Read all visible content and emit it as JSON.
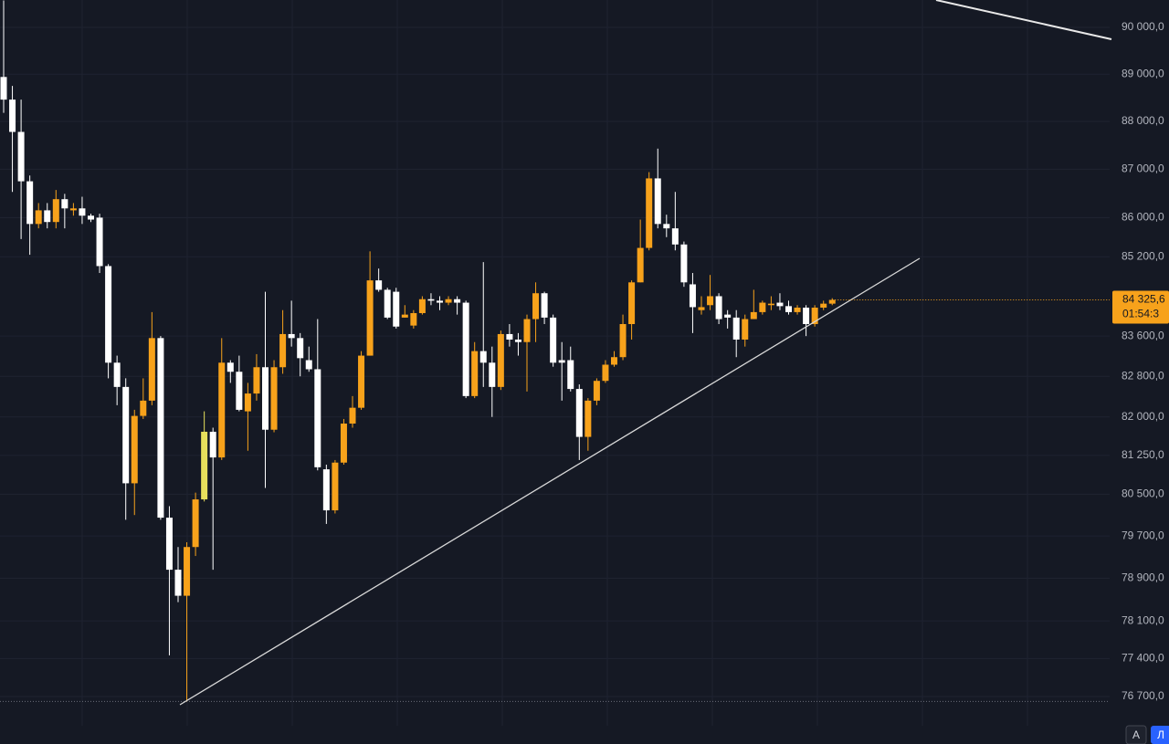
{
  "chart_data": {
    "type": "candlestick",
    "log": true,
    "grid": true,
    "up_color": "#f7a21b",
    "down_color": "#ffffff",
    "selected_index": 23,
    "selected_color": "#e8e05c",
    "ylim": [
      75835,
      90591
    ],
    "yticks": [
      {
        "value": 90000,
        "label": "90 000,0"
      },
      {
        "value": 89000,
        "label": "89 000,0"
      },
      {
        "value": 88000,
        "label": "88 000,0"
      },
      {
        "value": 87000,
        "label": "87 000,0"
      },
      {
        "value": 86000,
        "label": "86 000,0"
      },
      {
        "value": 85200,
        "label": "85 200,0"
      },
      {
        "value": 83600,
        "label": "83 600,0"
      },
      {
        "value": 82800,
        "label": "82 800,0"
      },
      {
        "value": 82000,
        "label": "82 000,0"
      },
      {
        "value": 81250,
        "label": "81 250,0"
      },
      {
        "value": 80500,
        "label": "80 500,0"
      },
      {
        "value": 79700,
        "label": "79 700,0"
      },
      {
        "value": 78900,
        "label": "78 900,0"
      },
      {
        "value": 78100,
        "label": "78 100,0"
      },
      {
        "value": 77400,
        "label": "77 400,0"
      },
      {
        "value": 76700,
        "label": "76 700,0"
      }
    ],
    "open": [
      88940,
      88460,
      87780,
      86750,
      85870,
      86150,
      85910,
      86380,
      86150,
      86190,
      86040,
      86000,
      85010,
      83070,
      82590,
      80710,
      82020,
      82320,
      83560,
      80050,
      79060,
      78570,
      79490,
      80400,
      81710,
      81210,
      83070,
      82890,
      82110,
      82460,
      82980,
      81750,
      82980,
      83640,
      83560,
      83120,
      82940,
      80980,
      80190,
      81110,
      81870,
      82180,
      83210,
      84720,
      84530,
      84490,
      83970,
      83810,
      84060,
      84340,
      84310,
      84270,
      84340,
      84270,
      82410,
      83300,
      83070,
      82590,
      83640,
      83530,
      83480,
      83940,
      84460,
      83970,
      83120,
      83120,
      82550,
      81610,
      82320,
      82710,
      83030,
      83180,
      83840,
      84680,
      85380,
      86810,
      85870,
      85780,
      85450,
      84640,
      84120,
      84220,
      84400,
      84030,
      83970,
      83530,
      83940,
      84080,
      84220,
      84270,
      84200,
      84080,
      84170,
      83840,
      84170,
      84250
    ],
    "high": [
      90580,
      88750,
      88460,
      86870,
      86300,
      86300,
      86570,
      86490,
      86300,
      86430,
      86080,
      86080,
      85050,
      83210,
      82760,
      82140,
      82760,
      84080,
      83600,
      80270,
      79490,
      79580,
      80530,
      82110,
      81790,
      83560,
      83120,
      83210,
      82670,
      83240,
      84490,
      83120,
      84120,
      84310,
      83660,
      83390,
      83940,
      81070,
      81160,
      81960,
      82410,
      83300,
      85310,
      84960,
      84570,
      84570,
      84220,
      84120,
      84400,
      84460,
      84400,
      84400,
      84400,
      84310,
      83480,
      85090,
      83390,
      83710,
      83840,
      83660,
      84030,
      84680,
      84490,
      84030,
      83480,
      83390,
      82640,
      82370,
      82760,
      83120,
      83300,
      84030,
      84720,
      85960,
      86940,
      87430,
      86060,
      86530,
      85510,
      84870,
      84400,
      84830,
      84460,
      84120,
      84120,
      84030,
      84530,
      84310,
      84400,
      84460,
      84310,
      84220,
      84220,
      84220,
      84310,
      84360
    ],
    "low": [
      88180,
      86530,
      85560,
      85240,
      85780,
      85780,
      85780,
      85780,
      86040,
      85870,
      85910,
      84870,
      82760,
      82230,
      80010,
      80100,
      81960,
      82230,
      80010,
      77460,
      78450,
      76610,
      79320,
      80360,
      79060,
      81160,
      82670,
      82110,
      81340,
      82320,
      80620,
      81700,
      82850,
      83390,
      82800,
      82890,
      80960,
      79930,
      80130,
      81070,
      81790,
      82140,
      83210,
      84490,
      83940,
      83750,
      83970,
      83750,
      84030,
      84220,
      84120,
      84220,
      84030,
      82370,
      82370,
      82590,
      82000,
      82530,
      83390,
      83210,
      82500,
      83480,
      83840,
      82990,
      82320,
      82500,
      81160,
      81340,
      82230,
      82670,
      82990,
      83120,
      83530,
      84680,
      85330,
      85780,
      85600,
      85330,
      84590,
      83660,
      84030,
      84120,
      83840,
      83750,
      83180,
      83390,
      83940,
      84030,
      84120,
      84120,
      84030,
      84030,
      83600,
      83790,
      84120,
      84220
    ],
    "close": [
      88460,
      87780,
      86750,
      85870,
      86150,
      85910,
      86380,
      86190,
      86190,
      86040,
      85960,
      85010,
      83070,
      82590,
      80710,
      82020,
      82320,
      83560,
      80050,
      79060,
      78570,
      79490,
      80400,
      81710,
      81210,
      83070,
      82890,
      82140,
      82460,
      82980,
      81750,
      82980,
      83640,
      83560,
      83160,
      82940,
      81020,
      80190,
      81110,
      81870,
      82180,
      83210,
      84720,
      84530,
      83970,
      83790,
      84030,
      84060,
      84340,
      84310,
      84270,
      84340,
      84270,
      82410,
      83300,
      83070,
      82590,
      83640,
      83530,
      83480,
      83940,
      84460,
      83970,
      83070,
      83070,
      82550,
      81610,
      82320,
      82710,
      83030,
      83180,
      83840,
      84680,
      85380,
      86810,
      85870,
      85780,
      85450,
      84680,
      84180,
      84180,
      84400,
      83940,
      83970,
      83530,
      83940,
      84080,
      84270,
      84250,
      84200,
      84080,
      84170,
      83840,
      84170,
      84250,
      84325.6
    ],
    "last_price": {
      "value": 84325.6,
      "label": "84 325,6"
    },
    "countdown": "01:54:3"
  },
  "ui": {
    "buttons": [
      "A",
      "Л"
    ]
  }
}
